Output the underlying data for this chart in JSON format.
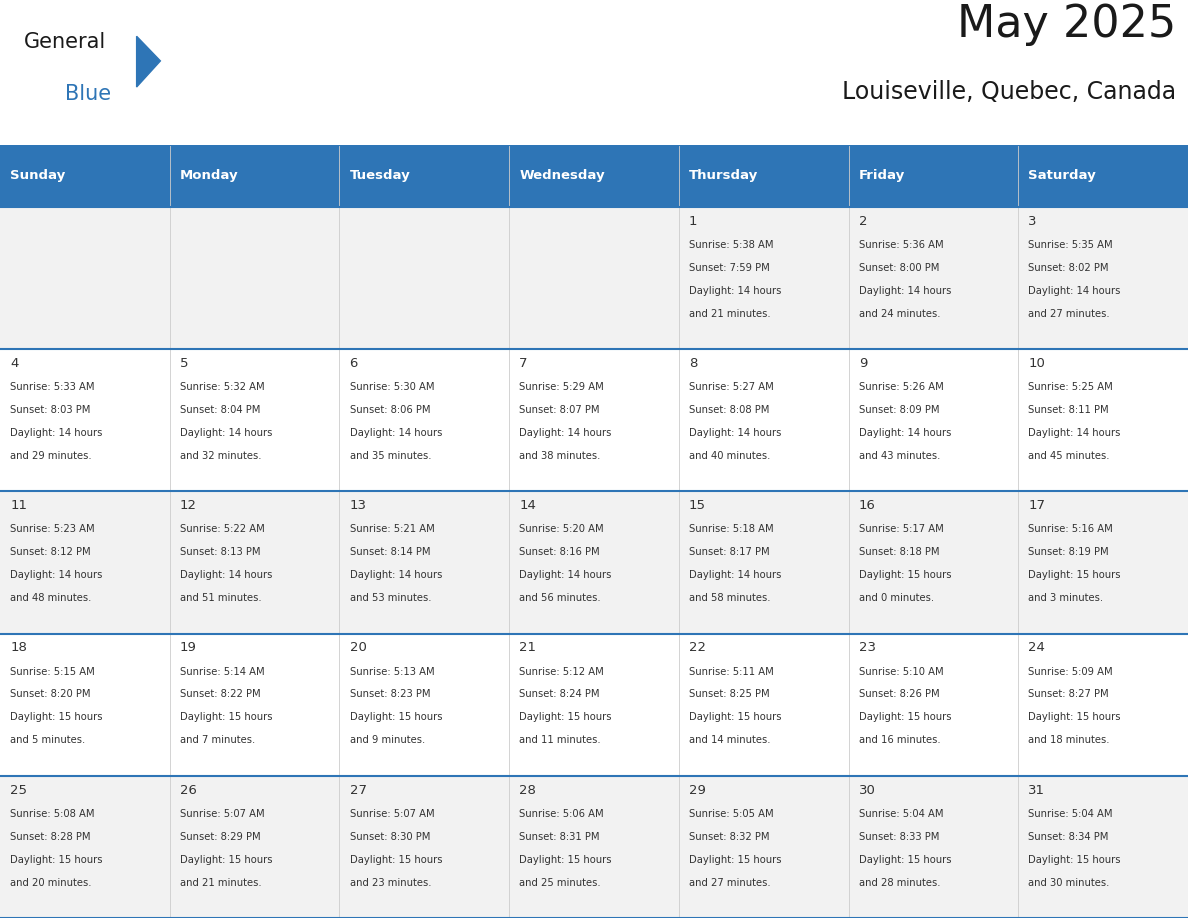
{
  "title": "May 2025",
  "subtitle": "Louiseville, Quebec, Canada",
  "header_color": "#2E75B6",
  "header_text_color": "#FFFFFF",
  "day_names": [
    "Sunday",
    "Monday",
    "Tuesday",
    "Wednesday",
    "Thursday",
    "Friday",
    "Saturday"
  ],
  "row_bg_colors": [
    "#F2F2F2",
    "#FFFFFF"
  ],
  "text_color": "#333333",
  "line_color": "#2E75B6",
  "days": [
    {
      "day": 1,
      "col": 4,
      "row": 0,
      "sunrise": "5:38 AM",
      "sunset": "7:59 PM",
      "daylight": "14 hours and 21 minutes"
    },
    {
      "day": 2,
      "col": 5,
      "row": 0,
      "sunrise": "5:36 AM",
      "sunset": "8:00 PM",
      "daylight": "14 hours and 24 minutes"
    },
    {
      "day": 3,
      "col": 6,
      "row": 0,
      "sunrise": "5:35 AM",
      "sunset": "8:02 PM",
      "daylight": "14 hours and 27 minutes"
    },
    {
      "day": 4,
      "col": 0,
      "row": 1,
      "sunrise": "5:33 AM",
      "sunset": "8:03 PM",
      "daylight": "14 hours and 29 minutes"
    },
    {
      "day": 5,
      "col": 1,
      "row": 1,
      "sunrise": "5:32 AM",
      "sunset": "8:04 PM",
      "daylight": "14 hours and 32 minutes"
    },
    {
      "day": 6,
      "col": 2,
      "row": 1,
      "sunrise": "5:30 AM",
      "sunset": "8:06 PM",
      "daylight": "14 hours and 35 minutes"
    },
    {
      "day": 7,
      "col": 3,
      "row": 1,
      "sunrise": "5:29 AM",
      "sunset": "8:07 PM",
      "daylight": "14 hours and 38 minutes"
    },
    {
      "day": 8,
      "col": 4,
      "row": 1,
      "sunrise": "5:27 AM",
      "sunset": "8:08 PM",
      "daylight": "14 hours and 40 minutes"
    },
    {
      "day": 9,
      "col": 5,
      "row": 1,
      "sunrise": "5:26 AM",
      "sunset": "8:09 PM",
      "daylight": "14 hours and 43 minutes"
    },
    {
      "day": 10,
      "col": 6,
      "row": 1,
      "sunrise": "5:25 AM",
      "sunset": "8:11 PM",
      "daylight": "14 hours and 45 minutes"
    },
    {
      "day": 11,
      "col": 0,
      "row": 2,
      "sunrise": "5:23 AM",
      "sunset": "8:12 PM",
      "daylight": "14 hours and 48 minutes"
    },
    {
      "day": 12,
      "col": 1,
      "row": 2,
      "sunrise": "5:22 AM",
      "sunset": "8:13 PM",
      "daylight": "14 hours and 51 minutes"
    },
    {
      "day": 13,
      "col": 2,
      "row": 2,
      "sunrise": "5:21 AM",
      "sunset": "8:14 PM",
      "daylight": "14 hours and 53 minutes"
    },
    {
      "day": 14,
      "col": 3,
      "row": 2,
      "sunrise": "5:20 AM",
      "sunset": "8:16 PM",
      "daylight": "14 hours and 56 minutes"
    },
    {
      "day": 15,
      "col": 4,
      "row": 2,
      "sunrise": "5:18 AM",
      "sunset": "8:17 PM",
      "daylight": "14 hours and 58 minutes"
    },
    {
      "day": 16,
      "col": 5,
      "row": 2,
      "sunrise": "5:17 AM",
      "sunset": "8:18 PM",
      "daylight": "15 hours and 0 minutes"
    },
    {
      "day": 17,
      "col": 6,
      "row": 2,
      "sunrise": "5:16 AM",
      "sunset": "8:19 PM",
      "daylight": "15 hours and 3 minutes"
    },
    {
      "day": 18,
      "col": 0,
      "row": 3,
      "sunrise": "5:15 AM",
      "sunset": "8:20 PM",
      "daylight": "15 hours and 5 minutes"
    },
    {
      "day": 19,
      "col": 1,
      "row": 3,
      "sunrise": "5:14 AM",
      "sunset": "8:22 PM",
      "daylight": "15 hours and 7 minutes"
    },
    {
      "day": 20,
      "col": 2,
      "row": 3,
      "sunrise": "5:13 AM",
      "sunset": "8:23 PM",
      "daylight": "15 hours and 9 minutes"
    },
    {
      "day": 21,
      "col": 3,
      "row": 3,
      "sunrise": "5:12 AM",
      "sunset": "8:24 PM",
      "daylight": "15 hours and 11 minutes"
    },
    {
      "day": 22,
      "col": 4,
      "row": 3,
      "sunrise": "5:11 AM",
      "sunset": "8:25 PM",
      "daylight": "15 hours and 14 minutes"
    },
    {
      "day": 23,
      "col": 5,
      "row": 3,
      "sunrise": "5:10 AM",
      "sunset": "8:26 PM",
      "daylight": "15 hours and 16 minutes"
    },
    {
      "day": 24,
      "col": 6,
      "row": 3,
      "sunrise": "5:09 AM",
      "sunset": "8:27 PM",
      "daylight": "15 hours and 18 minutes"
    },
    {
      "day": 25,
      "col": 0,
      "row": 4,
      "sunrise": "5:08 AM",
      "sunset": "8:28 PM",
      "daylight": "15 hours and 20 minutes"
    },
    {
      "day": 26,
      "col": 1,
      "row": 4,
      "sunrise": "5:07 AM",
      "sunset": "8:29 PM",
      "daylight": "15 hours and 21 minutes"
    },
    {
      "day": 27,
      "col": 2,
      "row": 4,
      "sunrise": "5:07 AM",
      "sunset": "8:30 PM",
      "daylight": "15 hours and 23 minutes"
    },
    {
      "day": 28,
      "col": 3,
      "row": 4,
      "sunrise": "5:06 AM",
      "sunset": "8:31 PM",
      "daylight": "15 hours and 25 minutes"
    },
    {
      "day": 29,
      "col": 4,
      "row": 4,
      "sunrise": "5:05 AM",
      "sunset": "8:32 PM",
      "daylight": "15 hours and 27 minutes"
    },
    {
      "day": 30,
      "col": 5,
      "row": 4,
      "sunrise": "5:04 AM",
      "sunset": "8:33 PM",
      "daylight": "15 hours and 28 minutes"
    },
    {
      "day": 31,
      "col": 6,
      "row": 4,
      "sunrise": "5:04 AM",
      "sunset": "8:34 PM",
      "daylight": "15 hours and 30 minutes"
    }
  ]
}
